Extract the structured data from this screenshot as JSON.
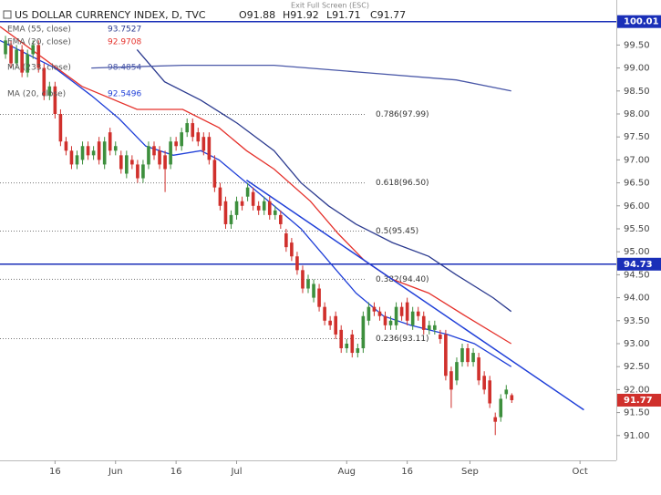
{
  "chart_data": {
    "type": "candlestick",
    "title": "US DOLLAR CURRENCY INDEX, D, TVC",
    "ohlc_labels": [
      "O91.88",
      "H91.92",
      "L91.71",
      "C91.77"
    ],
    "toolbar_text": "Exit Full Screen (ESC)",
    "up_color": "#3d8f3d",
    "down_color": "#d0302c",
    "xlim": [
      -1,
      111
    ],
    "ylim": [
      90.46,
      100.48
    ],
    "xticks": [
      {
        "value": 9,
        "label": "16"
      },
      {
        "value": 20,
        "label": "Jun"
      },
      {
        "value": 31,
        "label": "16"
      },
      {
        "value": 42,
        "label": "Jul"
      },
      {
        "value": 62,
        "label": "Aug"
      },
      {
        "value": 73,
        "label": "16"
      },
      {
        "value": 84.4,
        "label": "Sep"
      },
      {
        "value": 104.4,
        "label": "Oct"
      }
    ],
    "yticks": [
      {
        "value": 91,
        "label": "91.00"
      },
      {
        "value": 91.5,
        "label": "91.50"
      },
      {
        "value": 92,
        "label": "92.00"
      },
      {
        "value": 92.5,
        "label": "92.50"
      },
      {
        "value": 93,
        "label": "93.00"
      },
      {
        "value": 93.5,
        "label": "93.50"
      },
      {
        "value": 94,
        "label": "94.00"
      },
      {
        "value": 94.5,
        "label": "94.50"
      },
      {
        "value": 95,
        "label": "95.00"
      },
      {
        "value": 95.5,
        "label": "95.50"
      },
      {
        "value": 96,
        "label": "96.00"
      },
      {
        "value": 96.5,
        "label": "96.50"
      },
      {
        "value": 97,
        "label": "97.00"
      },
      {
        "value": 97.5,
        "label": "97.50"
      },
      {
        "value": 98,
        "label": "98.00"
      },
      {
        "value": 98.5,
        "label": "98.50"
      },
      {
        "value": 99,
        "label": "99.00"
      },
      {
        "value": 99.5,
        "label": "99.50"
      }
    ],
    "x": [
      0,
      1,
      2,
      3,
      4,
      5,
      6,
      7,
      8,
      9,
      10,
      11,
      12,
      13,
      14,
      15,
      16,
      17,
      18,
      19,
      20,
      21,
      22,
      23,
      24,
      25,
      26,
      27,
      28,
      29,
      30,
      31,
      32,
      33,
      34,
      35,
      36,
      37,
      38,
      39,
      40,
      41,
      42,
      43,
      44,
      45,
      46,
      47,
      48,
      49,
      50,
      51,
      52,
      53,
      54,
      55,
      56,
      57,
      58,
      59,
      60,
      61,
      62,
      63,
      64,
      65,
      66,
      67,
      68,
      69,
      70,
      71,
      72,
      73,
      74,
      75,
      76,
      77,
      78,
      79,
      80,
      81,
      82,
      83,
      84,
      85,
      86,
      87,
      88,
      89,
      90,
      91,
      92
    ],
    "open": [
      99.3,
      99.5,
      99.1,
      99.4,
      98.9,
      99.3,
      99.5,
      99.0,
      98.4,
      98.6,
      98.0,
      97.4,
      97.2,
      96.9,
      97.0,
      97.3,
      97.1,
      97.4,
      96.9,
      97.6,
      97.2,
      97.1,
      96.7,
      97.0,
      96.9,
      96.6,
      96.9,
      97.3,
      97.2,
      97.1,
      96.9,
      97.4,
      97.3,
      97.6,
      97.8,
      97.6,
      97.5,
      97.5,
      97.0,
      96.4,
      96.1,
      95.6,
      95.8,
      96.1,
      96.2,
      96.3,
      96.0,
      95.9,
      96.1,
      95.8,
      95.8,
      95.4,
      95.2,
      94.9,
      94.6,
      94.2,
      94.0,
      94.2,
      93.8,
      93.5,
      93.6,
      93.3,
      92.9,
      93.2,
      92.8,
      92.9,
      93.5,
      93.8,
      93.7,
      93.6,
      93.4,
      93.4,
      93.8,
      93.9,
      93.4,
      93.7,
      93.6,
      93.3,
      93.3,
      93.2,
      93.2,
      92.4,
      92.2,
      92.6,
      92.9,
      92.6,
      92.7,
      92.3,
      92.2,
      91.4,
      91.4,
      91.9,
      91.88
    ],
    "high": [
      99.7,
      99.6,
      99.5,
      99.5,
      99.4,
      99.6,
      99.6,
      99.1,
      98.7,
      98.7,
      98.1,
      97.5,
      97.3,
      97.2,
      97.4,
      97.4,
      97.3,
      97.5,
      97.5,
      97.7,
      97.4,
      97.2,
      97.2,
      97.1,
      97.0,
      97.0,
      97.4,
      97.4,
      97.3,
      97.2,
      97.5,
      97.5,
      97.7,
      97.9,
      97.9,
      97.7,
      97.6,
      97.6,
      97.1,
      96.5,
      96.2,
      95.9,
      96.2,
      96.2,
      96.5,
      96.4,
      96.1,
      96.2,
      96.2,
      96.0,
      95.9,
      95.5,
      95.3,
      95.0,
      94.7,
      94.5,
      94.4,
      94.3,
      93.9,
      93.6,
      93.7,
      93.4,
      93.1,
      93.3,
      93.0,
      93.7,
      93.9,
      93.9,
      93.8,
      93.7,
      93.6,
      93.9,
      93.9,
      94.0,
      93.8,
      93.8,
      93.7,
      93.5,
      93.5,
      93.3,
      93.3,
      92.5,
      92.7,
      93.0,
      93.0,
      92.9,
      92.8,
      92.4,
      92.3,
      91.5,
      91.9,
      92.1,
      91.92
    ],
    "low": [
      99.2,
      99.0,
      99.0,
      98.8,
      98.8,
      99.2,
      98.9,
      98.3,
      98.3,
      97.9,
      97.3,
      97.1,
      96.8,
      96.8,
      96.9,
      97.0,
      97.0,
      96.9,
      96.8,
      97.1,
      97.1,
      96.7,
      96.6,
      96.8,
      96.5,
      96.5,
      96.8,
      97.0,
      96.8,
      96.3,
      96.8,
      97.2,
      97.2,
      97.5,
      97.4,
      97.3,
      97.1,
      96.9,
      96.3,
      95.9,
      95.5,
      95.5,
      95.7,
      95.9,
      96.1,
      95.9,
      95.8,
      95.8,
      95.7,
      95.7,
      95.5,
      95.0,
      94.8,
      94.5,
      94.1,
      94.1,
      93.9,
      93.7,
      93.4,
      93.3,
      93.1,
      92.8,
      92.8,
      92.7,
      92.7,
      92.8,
      93.4,
      93.6,
      93.5,
      93.3,
      93.3,
      93.3,
      93.5,
      93.4,
      93.3,
      93.5,
      93.2,
      93.2,
      93.2,
      93.0,
      92.2,
      91.6,
      92.1,
      92.5,
      92.5,
      92.5,
      92.1,
      91.9,
      91.6,
      91.01,
      91.3,
      91.8,
      91.71
    ],
    "close": [
      99.6,
      99.1,
      99.4,
      98.9,
      99.3,
      99.5,
      99.0,
      98.4,
      98.6,
      98.0,
      97.4,
      97.2,
      96.9,
      97.1,
      97.3,
      97.1,
      97.2,
      97.0,
      97.4,
      97.2,
      97.3,
      96.8,
      97.1,
      96.9,
      96.6,
      96.9,
      97.3,
      97.1,
      96.9,
      96.8,
      97.4,
      97.3,
      97.6,
      97.8,
      97.5,
      97.4,
      97.2,
      97.0,
      96.4,
      96.0,
      95.6,
      95.8,
      96.1,
      96.0,
      96.4,
      96.0,
      95.9,
      96.1,
      95.8,
      95.9,
      95.6,
      95.1,
      94.9,
      94.6,
      94.2,
      94.4,
      94.3,
      93.8,
      93.5,
      93.4,
      93.2,
      92.9,
      93.0,
      92.8,
      92.9,
      93.6,
      93.8,
      93.7,
      93.6,
      93.4,
      93.5,
      93.8,
      93.6,
      93.5,
      93.7,
      93.6,
      93.3,
      93.4,
      93.4,
      93.1,
      92.3,
      92.0,
      92.6,
      92.9,
      92.6,
      92.8,
      92.2,
      92.0,
      91.7,
      91.3,
      91.8,
      92.0,
      91.77
    ],
    "series": [
      {
        "name": "EMA (55, close)",
        "last": 93.7527,
        "color": "#2b3a8f",
        "x": [
          23.9,
          28.9,
          35.5,
          42.1,
          48.8,
          53.7,
          58.7,
          63.7,
          70.3,
          76.9,
          81.9,
          88.6,
          91.9
        ],
        "values": [
          99.4,
          98.7,
          98.3,
          97.8,
          97.2,
          96.5,
          96.0,
          95.6,
          95.2,
          94.9,
          94.5,
          94.0,
          93.7
        ]
      },
      {
        "name": "EMA (20, close)",
        "last": 92.9708,
        "color": "#e5312b",
        "x": [
          -1,
          13.9,
          23.9,
          32.2,
          38.8,
          43.8,
          48.8,
          55.4,
          60.4,
          65.3,
          70.3,
          76.9,
          83.6,
          91.9
        ],
        "values": [
          99.9,
          98.6,
          98.1,
          98.1,
          97.7,
          97.2,
          96.8,
          96.1,
          95.4,
          94.8,
          94.4,
          94.1,
          93.6,
          93.0
        ]
      },
      {
        "name": "MA (233, close)",
        "last": 98.4854,
        "color": "#4a58a8",
        "x": [
          15.6,
          32.2,
          48.8,
          65.3,
          81.9,
          91.9
        ],
        "values": [
          99.0,
          99.06,
          99.06,
          98.9,
          98.74,
          98.5
        ]
      },
      {
        "name": "MA (20, close)",
        "last": 92.5496,
        "color": "#1f3fd8",
        "x": [
          -1,
          8.95,
          15.6,
          20.6,
          25.5,
          30.5,
          35.5,
          38.8,
          43.8,
          48.8,
          53.7,
          58.7,
          63.7,
          68.7,
          73.6,
          80.3,
          85.2,
          91.9
        ],
        "values": [
          99.6,
          99.0,
          98.4,
          97.9,
          97.3,
          97.1,
          97.2,
          97.0,
          96.5,
          96.0,
          95.5,
          94.8,
          94.1,
          93.6,
          93.4,
          93.2,
          93.0,
          92.5
        ]
      }
    ],
    "trendline": {
      "color": "#1f3fd8",
      "x": [
        43.8,
        105.1
      ],
      "values": [
        96.56,
        91.56
      ]
    },
    "hlines": [
      {
        "value": 100.01,
        "color": "#1a2fb8"
      },
      {
        "value": 94.73,
        "color": "#1a2fb8"
      }
    ],
    "fib": [
      {
        "label": "0.786(97.99)",
        "value": 97.99
      },
      {
        "label": "0.618(96.50)",
        "value": 96.5
      },
      {
        "label": "0.5(95.45)",
        "value": 95.45
      },
      {
        "label": "0.382(94.40)",
        "value": 94.4
      },
      {
        "label": "0.236(93.11)",
        "value": 93.11
      }
    ]
  }
}
